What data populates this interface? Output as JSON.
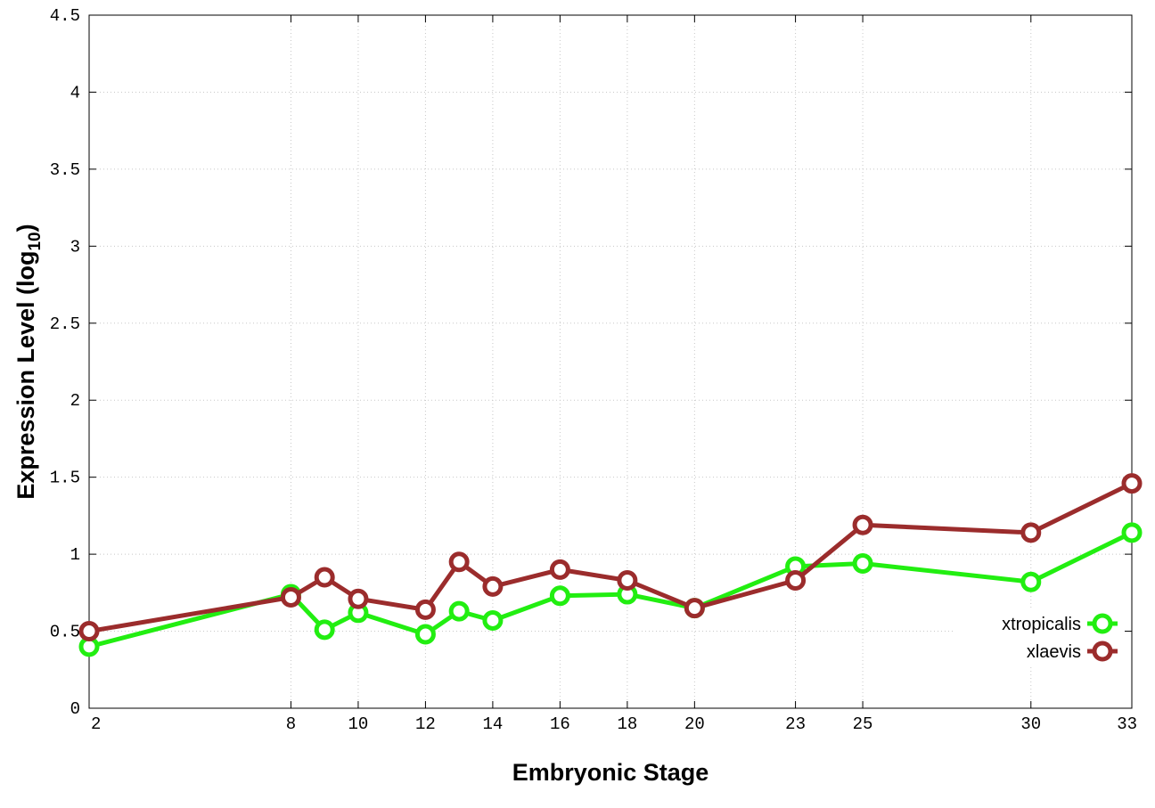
{
  "chart_data": {
    "type": "line",
    "title": "",
    "xlabel": "Embryonic Stage",
    "ylabel_main": "Expression Level (log",
    "ylabel_sub": "10",
    "ylabel_close": ")",
    "x": [
      2,
      8,
      9,
      10,
      12,
      13,
      14,
      16,
      18,
      20,
      23,
      25,
      30,
      33
    ],
    "xticks": [
      2,
      8,
      10,
      12,
      14,
      16,
      18,
      20,
      23,
      25,
      30,
      33
    ],
    "xtick_labels": [
      "2",
      "8",
      "10",
      "12",
      "14",
      "16",
      "18",
      "20",
      "23",
      "25",
      "30",
      "33"
    ],
    "xlim": [
      2,
      33
    ],
    "yticks": [
      0,
      0.5,
      1,
      1.5,
      2,
      2.5,
      3,
      3.5,
      4,
      4.5
    ],
    "ytick_labels": [
      "0",
      "0.5",
      "1",
      "1.5",
      "2",
      "2.5",
      "3",
      "3.5",
      "4",
      "4.5"
    ],
    "ylim": [
      0,
      4.5
    ],
    "grid": true,
    "legend_position": "bottom-right",
    "series": [
      {
        "name": "xtropicalis",
        "color": "#22ee11",
        "values": [
          0.4,
          0.74,
          0.51,
          0.62,
          0.48,
          0.63,
          0.57,
          0.73,
          0.74,
          0.65,
          0.92,
          0.94,
          0.82,
          1.14
        ]
      },
      {
        "name": "xlaevis",
        "color": "#9b2c2c",
        "values": [
          0.5,
          0.72,
          0.85,
          0.71,
          0.64,
          0.95,
          0.79,
          0.9,
          0.83,
          0.65,
          0.83,
          1.19,
          1.14,
          1.46
        ]
      }
    ]
  }
}
